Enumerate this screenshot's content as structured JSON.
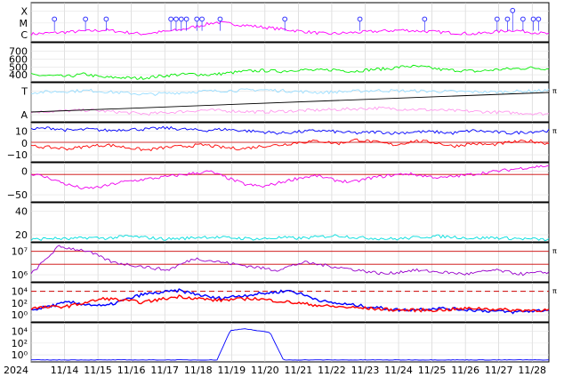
{
  "chart_data": {
    "type": "line",
    "year_label": "2024",
    "x_ticks": [
      "11/14",
      "11/15",
      "11/16",
      "11/17",
      "11/18",
      "11/19",
      "11/20",
      "11/21",
      "11/22",
      "11/23",
      "11/24",
      "11/25",
      "11/26",
      "11/27",
      "11/28"
    ],
    "x_range": [
      "2024-11-13",
      "2024-11-28 12:00"
    ],
    "grid": true,
    "panels": [
      {
        "id": "flare-class",
        "y_ticks": [
          "X",
          "M",
          "C"
        ],
        "series": [
          {
            "color": "#ff00ff",
            "values": [
              0.2,
              0.25,
              0.3,
              0.2,
              0.3,
              0.5,
              0.4,
              0.3,
              0.2,
              0.25,
              0.3,
              0.25,
              0.2,
              0.3,
              0.2
            ]
          }
        ],
        "events": [
          {
            "x": 0.9,
            "level": "M"
          },
          {
            "x": 2.1,
            "level": "M"
          },
          {
            "x": 2.9,
            "level": "M"
          },
          {
            "x": 5.4,
            "level": "M"
          },
          {
            "x": 5.6,
            "level": "M"
          },
          {
            "x": 5.8,
            "level": "M"
          },
          {
            "x": 6.0,
            "level": "M"
          },
          {
            "x": 6.4,
            "level": "M"
          },
          {
            "x": 6.6,
            "level": "M"
          },
          {
            "x": 7.3,
            "level": "M"
          },
          {
            "x": 9.8,
            "level": "M"
          },
          {
            "x": 12.7,
            "level": "M"
          },
          {
            "x": 15.2,
            "level": "M"
          },
          {
            "x": 18.0,
            "level": "M"
          },
          {
            "x": 18.4,
            "level": "M"
          },
          {
            "x": 18.6,
            "level": "X"
          },
          {
            "x": 19.0,
            "level": "M"
          },
          {
            "x": 19.4,
            "level": "M"
          },
          {
            "x": 19.6,
            "level": "M"
          }
        ]
      },
      {
        "id": "solar-wind-speed",
        "y_ticks": [
          "700",
          "600",
          "500",
          "400"
        ],
        "ylim": [
          300,
          750
        ],
        "series": [
          {
            "color": "#00ee00",
            "values": [
              380,
              370,
              360,
              390,
              350,
              350,
              340,
              360,
              380,
              390,
              380,
              400,
              420,
              430,
              420,
              440,
              430,
              440,
              420,
              440,
              450,
              480,
              470,
              440,
              430,
              420,
              440,
              450,
              460,
              450
            ]
          }
        ]
      },
      {
        "id": "imf-sector",
        "y_ticks": [
          "T",
          "A"
        ],
        "side_label": "π",
        "series": [
          {
            "color": "#ff99ee",
            "values": [
              0.25,
              0.3,
              0.2,
              0.3,
              0.25,
              0.3,
              0.35,
              0.3,
              0.25,
              0.2
            ]
          },
          {
            "color": "#99ddff",
            "values": [
              0.75,
              0.8,
              0.7,
              0.78,
              0.82,
              0.75,
              0.8,
              0.78,
              0.76,
              0.8
            ]
          },
          {
            "color": "#000000",
            "values": [
              0.25,
              0.75
            ]
          }
        ]
      },
      {
        "id": "bz",
        "y_ticks": [
          "10",
          "0",
          "−10"
        ],
        "ylim": [
          -15,
          15
        ],
        "side_label": "π",
        "series": [
          {
            "color": "#0000ff",
            "values": [
              10,
              11,
              9,
              10,
              9,
              10,
              10,
              11,
              10,
              9,
              10,
              9,
              8,
              7,
              8,
              9,
              8,
              7,
              8,
              7,
              8,
              8,
              7,
              9,
              8,
              7,
              8,
              9
            ]
          },
          {
            "color": "#ff0000",
            "values": [
              -3,
              -4,
              -5,
              -3,
              -2,
              -4,
              -6,
              -4,
              -3,
              -2,
              -4,
              -5,
              -3,
              -2,
              0,
              1,
              -1,
              2,
              0,
              -2,
              1,
              0,
              -3,
              -1,
              -2,
              0,
              1,
              -1
            ]
          }
        ]
      },
      {
        "id": "dst",
        "y_ticks": [
          "0",
          "−50"
        ],
        "ylim": [
          -75,
          15
        ],
        "series": [
          {
            "color": "#ee00ee",
            "values": [
              -10,
              -20,
              -35,
              -45,
              -40,
              -30,
              -25,
              -20,
              -15,
              -10,
              -5,
              -20,
              -35,
              -40,
              -30,
              -20,
              -15,
              -25,
              -30,
              -20,
              -15,
              -10,
              -15,
              -20,
              -15,
              -10,
              -5,
              0,
              5,
              8
            ]
          }
        ]
      },
      {
        "id": "kp",
        "y_ticks": [
          "40",
          "20"
        ],
        "ylim": [
          0,
          55
        ],
        "series": [
          {
            "color": "#00dddd",
            "values": [
              3,
              5,
              4,
              6,
              5,
              8,
              6,
              4,
              5,
              7,
              6,
              5,
              4,
              6,
              5,
              7,
              9,
              6,
              5,
              4,
              6,
              8,
              7,
              5,
              6,
              5,
              4,
              3
            ]
          }
        ]
      },
      {
        "id": "proton-flux",
        "y_ticks": [
          "10⁷",
          "10⁶"
        ],
        "side_label": "π",
        "series": [
          {
            "color": "#9900cc",
            "values": [
              0.2,
              0.9,
              0.8,
              0.5,
              0.4,
              0.3,
              0.6,
              0.5,
              0.4,
              0.3,
              0.5,
              0.4,
              0.3,
              0.2,
              0.3,
              0.25,
              0.2,
              0.3,
              0.2,
              0.25
            ]
          }
        ]
      },
      {
        "id": "electron-flux",
        "y_ticks": [
          "10⁴",
          "10²",
          "10⁰"
        ],
        "side_label": "π",
        "series": [
          {
            "color": "#0000ff",
            "values": [
              0.3,
              0.5,
              0.4,
              0.7,
              0.8,
              0.6,
              0.7,
              0.8,
              0.5,
              0.4,
              0.3,
              0.35,
              0.3,
              0.25,
              0.3
            ]
          },
          {
            "color": "#ff0000",
            "values": [
              0.35,
              0.4,
              0.6,
              0.5,
              0.65,
              0.55,
              0.6,
              0.5,
              0.4,
              0.35,
              0.3,
              0.3,
              0.35,
              0.3,
              0.3
            ]
          }
        ]
      },
      {
        "id": "x-ray-flux",
        "y_ticks": [
          "10⁴",
          "10²",
          "10⁰"
        ],
        "series": [
          {
            "color": "#0000ff",
            "values": [
              0.05,
              0.05,
              0.05,
              0.05,
              0.05,
              0.05,
              0.05,
              0.05,
              0.05,
              0.05,
              0.05,
              0.05,
              0.05,
              0.05,
              0.05,
              0.8,
              0.85,
              0.8,
              0.75,
              0.05,
              0.05,
              0.05,
              0.05,
              0.05,
              0.05,
              0.05,
              0.05,
              0.05,
              0.05,
              0.05,
              0.05,
              0.05,
              0.05,
              0.05,
              0.05,
              0.05,
              0.05,
              0.05,
              0.05,
              0.05
            ]
          }
        ]
      }
    ]
  }
}
